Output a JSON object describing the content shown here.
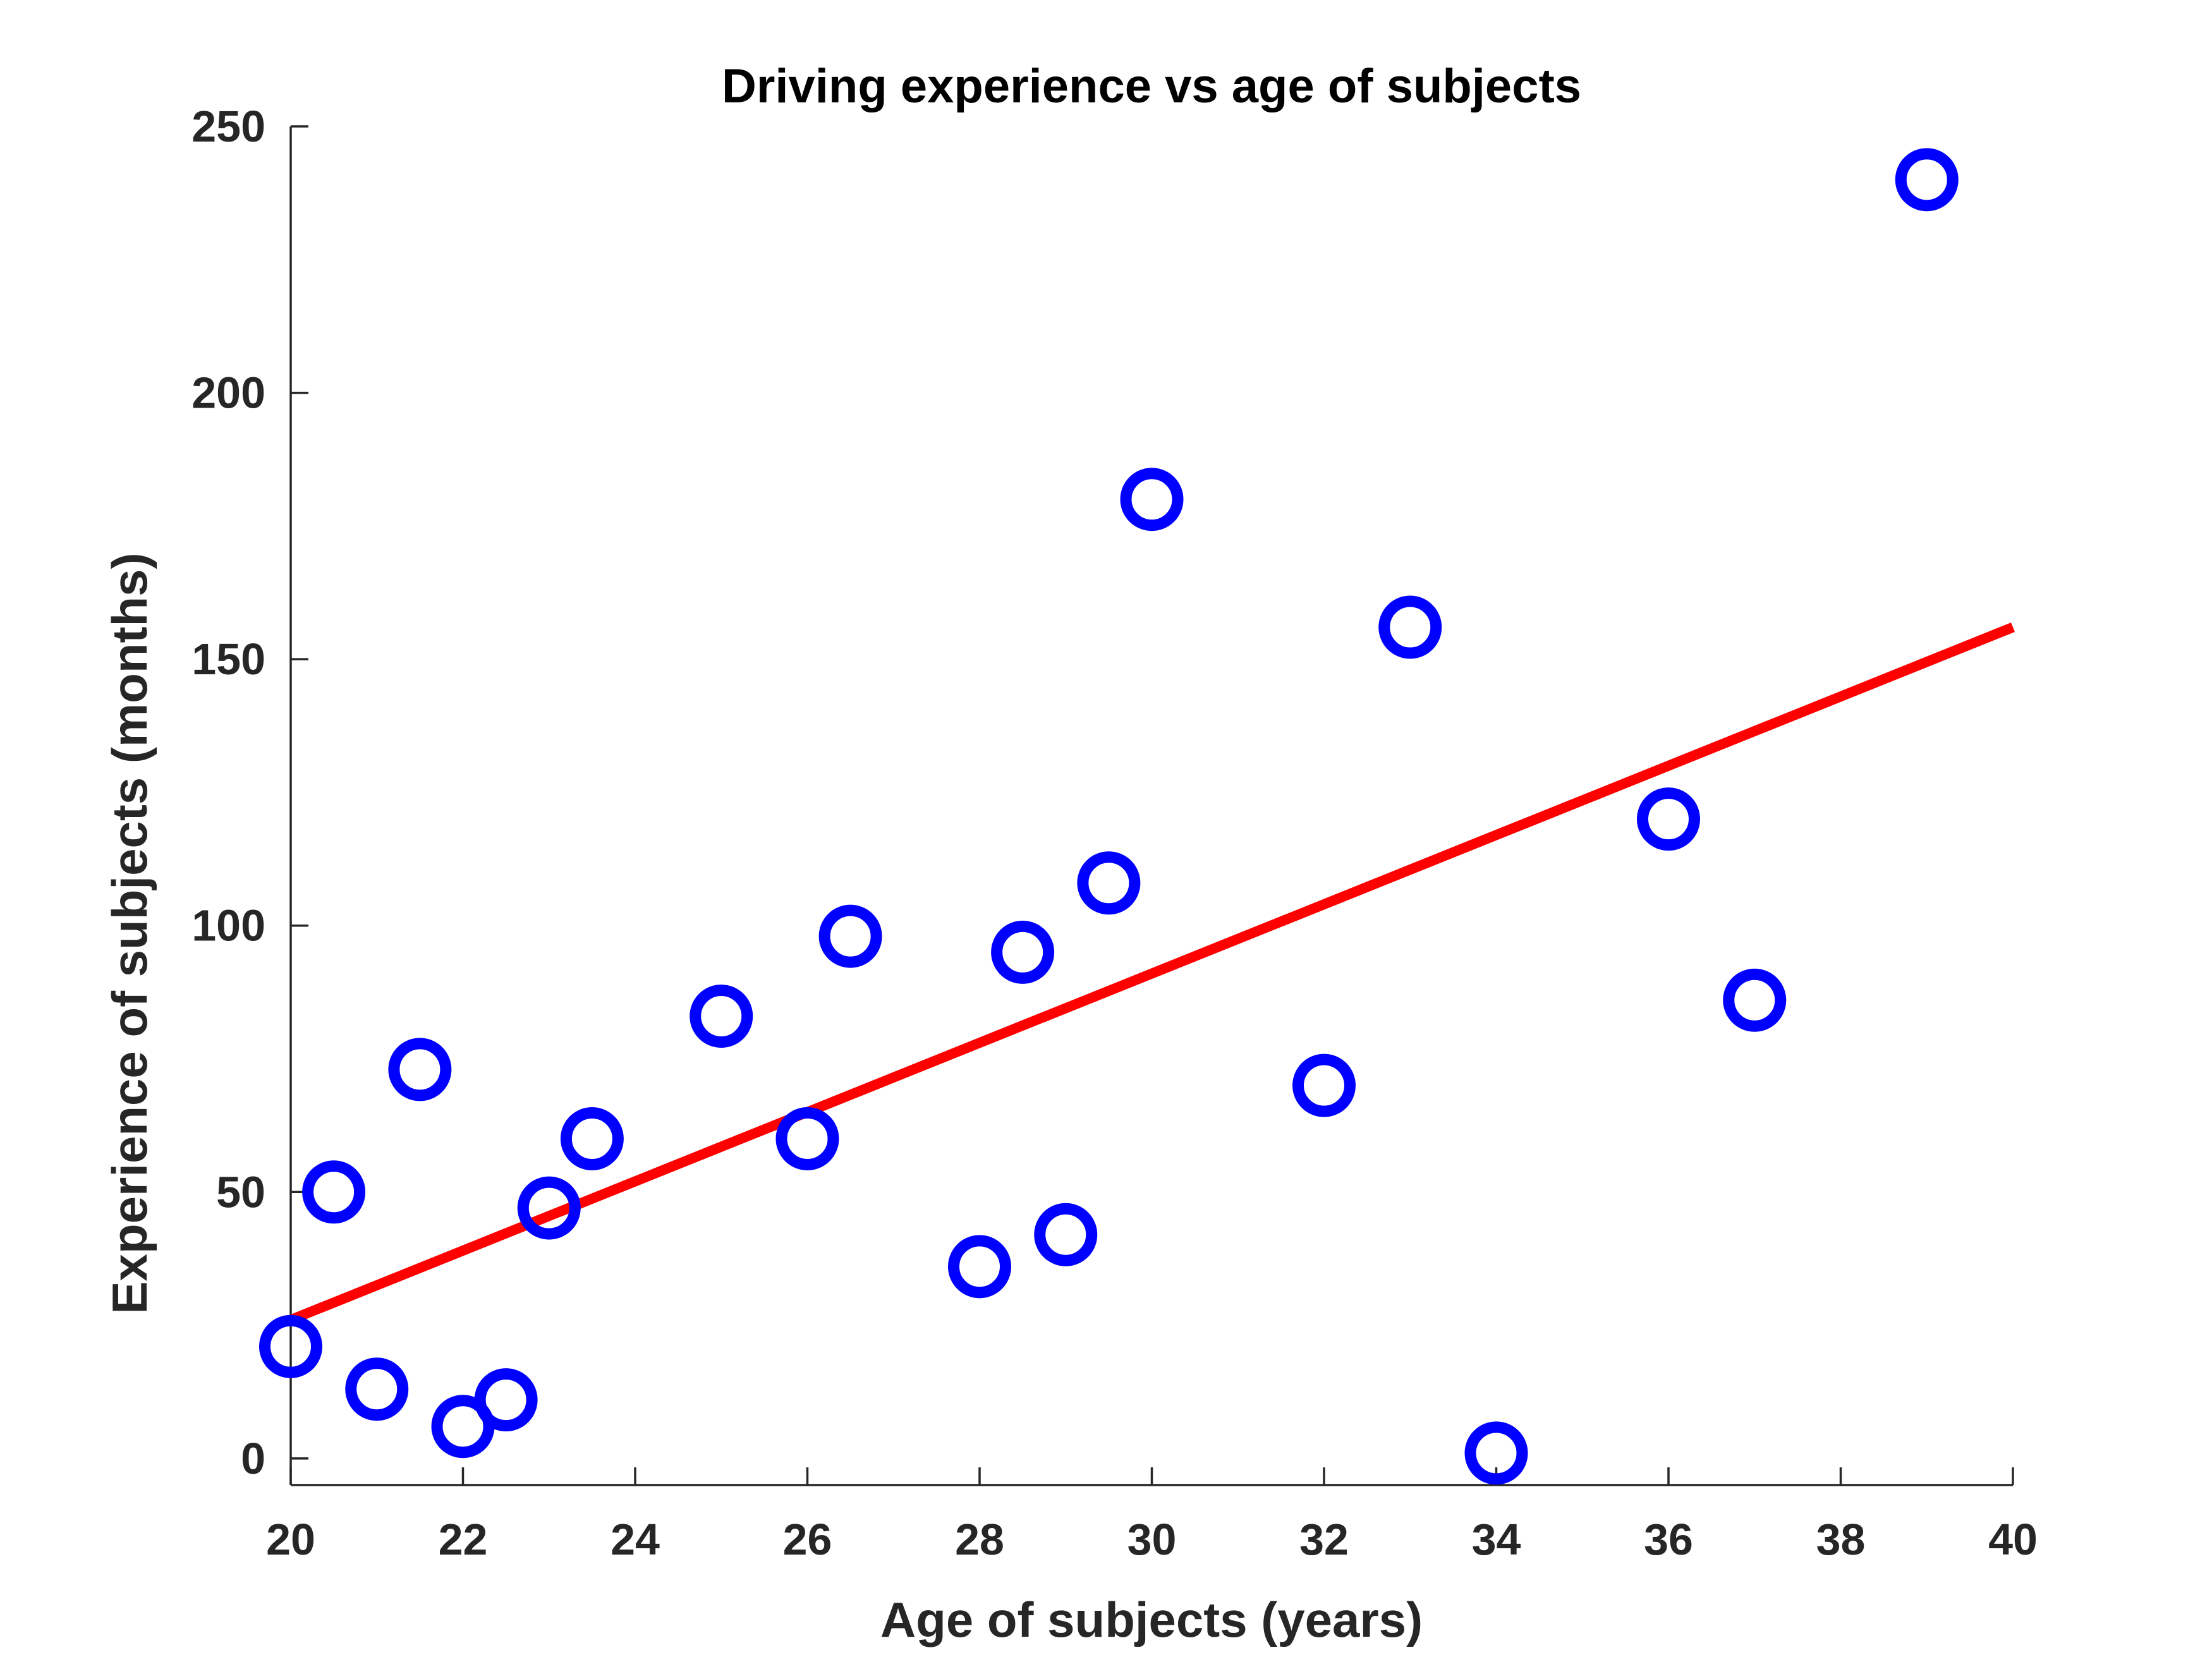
{
  "chart_data": {
    "type": "scatter",
    "title": "Driving experience vs age of subjects",
    "xlabel": "Age of subjects (years)",
    "ylabel": "Experience of subjects (months)",
    "xlim": [
      20,
      40
    ],
    "ylim": [
      -5,
      250
    ],
    "xticks": [
      20,
      22,
      24,
      26,
      28,
      30,
      32,
      34,
      36,
      38,
      40
    ],
    "yticks": [
      0,
      50,
      100,
      150,
      200,
      250
    ],
    "series": [
      {
        "name": "subjects",
        "marker": "circle",
        "color": "#0000ff",
        "x": [
          20,
          20.5,
          21,
          21.5,
          22,
          22.5,
          23,
          23.5,
          25,
          26,
          26.5,
          28,
          28.5,
          29,
          29.5,
          30,
          32,
          33,
          34,
          36,
          37,
          39
        ],
        "y": [
          21,
          50,
          13,
          73,
          6,
          11,
          47,
          60,
          83,
          60,
          98,
          36,
          95,
          42,
          108,
          180,
          70,
          156,
          1,
          120,
          86,
          240
        ]
      }
    ],
    "fit_line": {
      "name": "linear fit",
      "color": "#ff0000",
      "x": [
        20,
        40
      ],
      "y": [
        26,
        156
      ]
    }
  }
}
